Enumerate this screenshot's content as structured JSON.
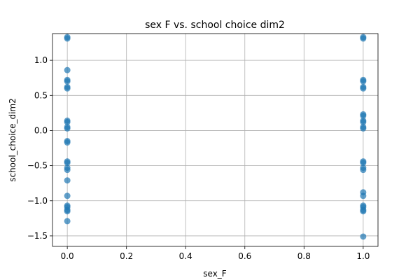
{
  "chart_data": {
    "type": "scatter",
    "title": "sex F vs. school choice dim2",
    "xlabel": "sex_F",
    "ylabel": "school_choice_dim2",
    "xlim": [
      -0.05,
      1.05
    ],
    "ylim": [
      -1.65,
      1.38
    ],
    "grid": true,
    "marker_color": "#1f77b4",
    "marker_alpha": 0.7,
    "x_ticks": [
      0.0,
      0.2,
      0.4,
      0.6,
      0.8,
      1.0
    ],
    "x_tick_labels": [
      "0.0",
      "0.2",
      "0.4",
      "0.6",
      "0.8",
      "1.0"
    ],
    "y_ticks": [
      1.0,
      0.5,
      0.0,
      -0.5,
      -1.0,
      -1.5
    ],
    "y_tick_labels": [
      "1.0",
      "0.5",
      "0.0",
      "−0.5",
      "−1.0",
      "−1.5"
    ],
    "points": [
      {
        "x": 0,
        "y": 1.33
      },
      {
        "x": 0,
        "y": 1.31
      },
      {
        "x": 0,
        "y": 0.86
      },
      {
        "x": 0,
        "y": 0.72
      },
      {
        "x": 0,
        "y": 0.7
      },
      {
        "x": 0,
        "y": 0.62
      },
      {
        "x": 0,
        "y": 0.6
      },
      {
        "x": 0,
        "y": 0.14
      },
      {
        "x": 0,
        "y": 0.12
      },
      {
        "x": 0,
        "y": 0.05
      },
      {
        "x": 0,
        "y": 0.03
      },
      {
        "x": 0,
        "y": -0.15
      },
      {
        "x": 0,
        "y": -0.17
      },
      {
        "x": 0,
        "y": -0.44
      },
      {
        "x": 0,
        "y": -0.46
      },
      {
        "x": 0,
        "y": -0.53
      },
      {
        "x": 0,
        "y": -0.56
      },
      {
        "x": 0,
        "y": -0.71
      },
      {
        "x": 0,
        "y": -0.93
      },
      {
        "x": 0,
        "y": -1.07
      },
      {
        "x": 0,
        "y": -1.09
      },
      {
        "x": 0,
        "y": -1.13
      },
      {
        "x": 0,
        "y": -1.15
      },
      {
        "x": 0,
        "y": -1.29
      },
      {
        "x": 1,
        "y": 1.33
      },
      {
        "x": 1,
        "y": 1.31
      },
      {
        "x": 1,
        "y": 0.72
      },
      {
        "x": 1,
        "y": 0.7
      },
      {
        "x": 1,
        "y": 0.62
      },
      {
        "x": 1,
        "y": 0.6
      },
      {
        "x": 1,
        "y": 0.23
      },
      {
        "x": 1,
        "y": 0.21
      },
      {
        "x": 1,
        "y": 0.14
      },
      {
        "x": 1,
        "y": 0.12
      },
      {
        "x": 1,
        "y": 0.05
      },
      {
        "x": 1,
        "y": 0.03
      },
      {
        "x": 1,
        "y": -0.44
      },
      {
        "x": 1,
        "y": -0.46
      },
      {
        "x": 1,
        "y": -0.53
      },
      {
        "x": 1,
        "y": -0.56
      },
      {
        "x": 1,
        "y": -0.88
      },
      {
        "x": 1,
        "y": -0.93
      },
      {
        "x": 1,
        "y": -1.07
      },
      {
        "x": 1,
        "y": -1.09
      },
      {
        "x": 1,
        "y": -1.13
      },
      {
        "x": 1,
        "y": -1.15
      },
      {
        "x": 1,
        "y": -1.51
      }
    ]
  }
}
